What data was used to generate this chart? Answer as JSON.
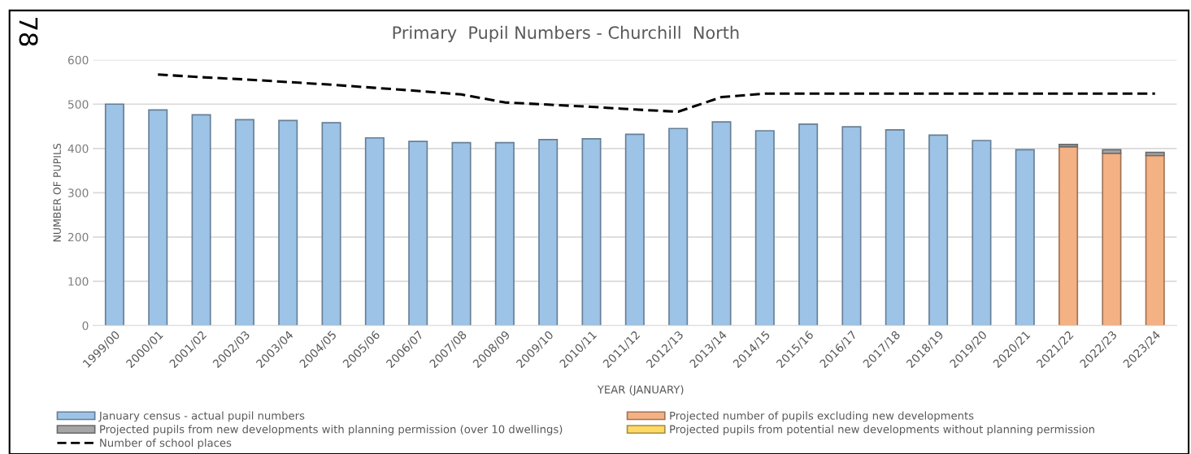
{
  "chart_data": {
    "type": "bar",
    "title": "Primary  Pupil Numbers - Churchill  North",
    "xlabel": "YEAR (JANUARY)",
    "ylabel": "NUMBER OF PUPILS",
    "categories": [
      "1999/00",
      "2000/01",
      "2001/02",
      "2002/03",
      "2003/04",
      "2004/05",
      "2005/06",
      "2006/07",
      "2007/08",
      "2008/09",
      "2009/10",
      "2010/11",
      "2011/12",
      "2012/13",
      "2013/14",
      "2014/15",
      "2015/16",
      "2016/17",
      "2017/18",
      "2018/19",
      "2019/20",
      "2020/21",
      "2021/22",
      "2022/23",
      "2023/24"
    ],
    "stacked": true,
    "series": [
      {
        "name": "January census - actual pupil numbers",
        "color": "#9dc3e6",
        "values": [
          500,
          487,
          476,
          465,
          463,
          458,
          424,
          416,
          413,
          413,
          420,
          422,
          432,
          445,
          460,
          440,
          455,
          449,
          442,
          430,
          418,
          397,
          null,
          null,
          null
        ]
      },
      {
        "name": "Projected number of pupils excluding new developments",
        "color": "#f4b183",
        "values": [
          null,
          null,
          null,
          null,
          null,
          null,
          null,
          null,
          null,
          null,
          null,
          null,
          null,
          null,
          null,
          null,
          null,
          null,
          null,
          null,
          null,
          null,
          404,
          389,
          384
        ]
      },
      {
        "name": "Projected pupils from new developments with planning permission (over 10 dwellings)",
        "color": "#a5a5a5",
        "values": [
          null,
          null,
          null,
          null,
          null,
          null,
          null,
          null,
          null,
          null,
          null,
          null,
          null,
          null,
          null,
          null,
          null,
          null,
          null,
          null,
          null,
          null,
          5,
          8,
          7
        ]
      },
      {
        "name": "Projected pupils from potential new developments without planning permission",
        "color": "#ffd966",
        "values": [
          null,
          null,
          null,
          null,
          null,
          null,
          null,
          null,
          null,
          null,
          null,
          null,
          null,
          null,
          null,
          null,
          null,
          null,
          null,
          null,
          null,
          null,
          0,
          0,
          0
        ]
      },
      {
        "name": "Number of school places",
        "type": "line",
        "color": "#000000",
        "line_style": "dashed",
        "marker": "none",
        "values": [
          null,
          567,
          561,
          556,
          550,
          544,
          537,
          530,
          522,
          504,
          499,
          494,
          488,
          483,
          516,
          524,
          524,
          524,
          524,
          524,
          524,
          524,
          524,
          524,
          524
        ]
      }
    ],
    "ylim": [
      0,
      600
    ],
    "yticks": [
      0,
      100,
      200,
      300,
      400,
      500,
      600
    ],
    "grid": "y",
    "legend": "bottom",
    "annotations": [
      "78"
    ]
  }
}
